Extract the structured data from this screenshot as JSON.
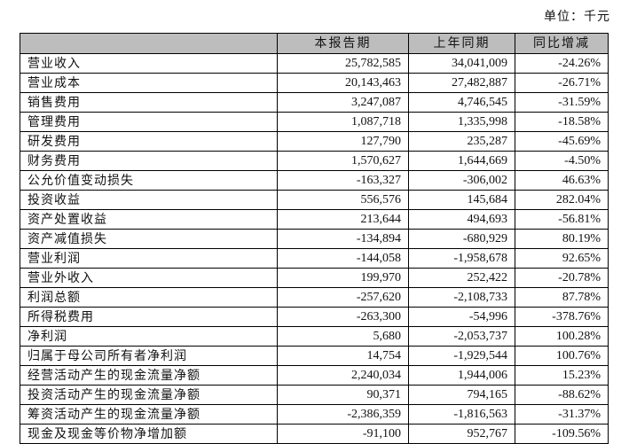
{
  "unit_label": "单位：千元",
  "table": {
    "headers": [
      "",
      "本报告期",
      "上年同期",
      "同比增减"
    ],
    "rows": [
      {
        "item": "营业收入",
        "current": "25,782,585",
        "prior": "34,041,009",
        "change": "-24.26%"
      },
      {
        "item": "营业成本",
        "current": "20,143,463",
        "prior": "27,482,887",
        "change": "-26.71%"
      },
      {
        "item": "销售费用",
        "current": "3,247,087",
        "prior": "4,746,545",
        "change": "-31.59%"
      },
      {
        "item": "管理费用",
        "current": "1,087,718",
        "prior": "1,335,998",
        "change": "-18.58%"
      },
      {
        "item": "研发费用",
        "current": "127,790",
        "prior": "235,287",
        "change": "-45.69%"
      },
      {
        "item": "财务费用",
        "current": "1,570,627",
        "prior": "1,644,669",
        "change": "-4.50%"
      },
      {
        "item": "公允价值变动损失",
        "current": "-163,327",
        "prior": "-306,002",
        "change": "46.63%"
      },
      {
        "item": "投资收益",
        "current": "556,576",
        "prior": "145,684",
        "change": "282.04%"
      },
      {
        "item": "资产处置收益",
        "current": "213,644",
        "prior": "494,693",
        "change": "-56.81%"
      },
      {
        "item": "资产减值损失",
        "current": "-134,894",
        "prior": "-680,929",
        "change": "80.19%"
      },
      {
        "item": "营业利润",
        "current": "-144,058",
        "prior": "-1,958,678",
        "change": "92.65%"
      },
      {
        "item": "营业外收入",
        "current": "199,970",
        "prior": "252,422",
        "change": "-20.78%"
      },
      {
        "item": "利润总额",
        "current": "-257,620",
        "prior": "-2,108,733",
        "change": "87.78%"
      },
      {
        "item": "所得税费用",
        "current": "-263,300",
        "prior": "-54,996",
        "change": "-378.76%"
      },
      {
        "item": "净利润",
        "current": "5,680",
        "prior": "-2,053,737",
        "change": "100.28%"
      },
      {
        "item": "归属于母公司所有者净利润",
        "current": "14,754",
        "prior": "-1,929,544",
        "change": "100.76%"
      },
      {
        "item": "经营活动产生的现金流量净额",
        "current": "2,240,034",
        "prior": "1,944,006",
        "change": "15.23%"
      },
      {
        "item": "投资活动产生的现金流量净额",
        "current": "90,371",
        "prior": "794,165",
        "change": "-88.62%"
      },
      {
        "item": "筹资活动产生的现金流量净额",
        "current": "-2,386,359",
        "prior": "-1,816,563",
        "change": "-31.37%"
      },
      {
        "item": "现金及现金等价物净增加额",
        "current": "-91,100",
        "prior": "952,767",
        "change": "-109.56%"
      }
    ]
  }
}
